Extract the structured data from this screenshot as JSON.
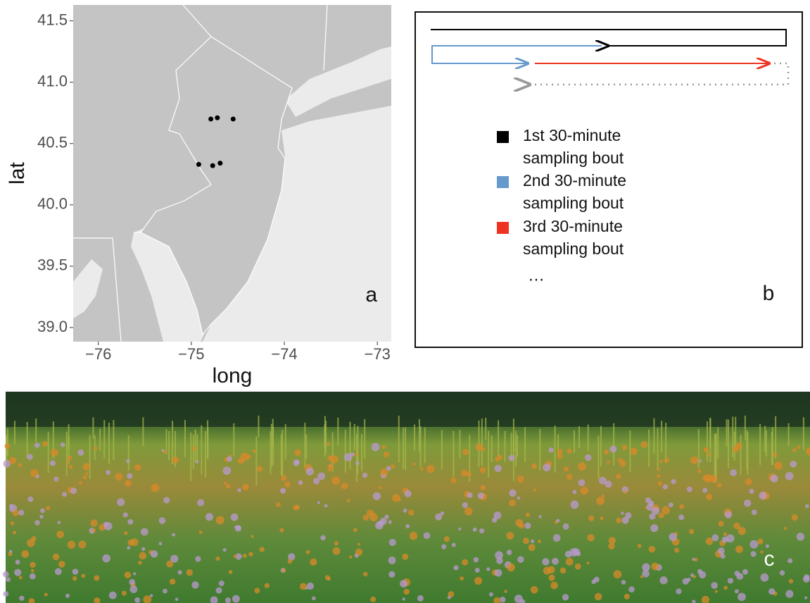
{
  "chart_data": {
    "type": "scatter",
    "x": [
      -74.79,
      -74.72,
      -74.55,
      -74.92,
      -74.77,
      -74.69
    ],
    "values": [
      40.7,
      40.71,
      40.7,
      40.33,
      40.32,
      40.34
    ],
    "color": "#000000",
    "xlabel": "long",
    "ylabel": "lat",
    "annotation": "a",
    "xlim": [
      -76.27,
      -72.85
    ],
    "ylim": [
      38.885,
      41.63
    ],
    "xticks": [
      {
        "value": -76,
        "label": "−76"
      },
      {
        "value": -75,
        "label": "−75"
      },
      {
        "value": -74,
        "label": "−74"
      },
      {
        "value": -73,
        "label": "−73"
      }
    ],
    "yticks": [
      {
        "value": 39,
        "label": "39.0"
      },
      39.5,
      {
        "value": 40,
        "label": "40.0"
      },
      40.5,
      {
        "value": 41,
        "label": "41.0"
      },
      41.5
    ]
  },
  "panel_b": {
    "label": "b",
    "ellipsis": "…",
    "legend": [
      {
        "label": "1st 30-minute sampling bout",
        "color": "#000000"
      },
      {
        "label": "2nd 30-minute sampling bout",
        "color": "#6699cc"
      },
      {
        "label": "3rd 30-minute sampling bout",
        "color": "#ee3322"
      }
    ]
  },
  "panel_c": {
    "label": "c"
  }
}
